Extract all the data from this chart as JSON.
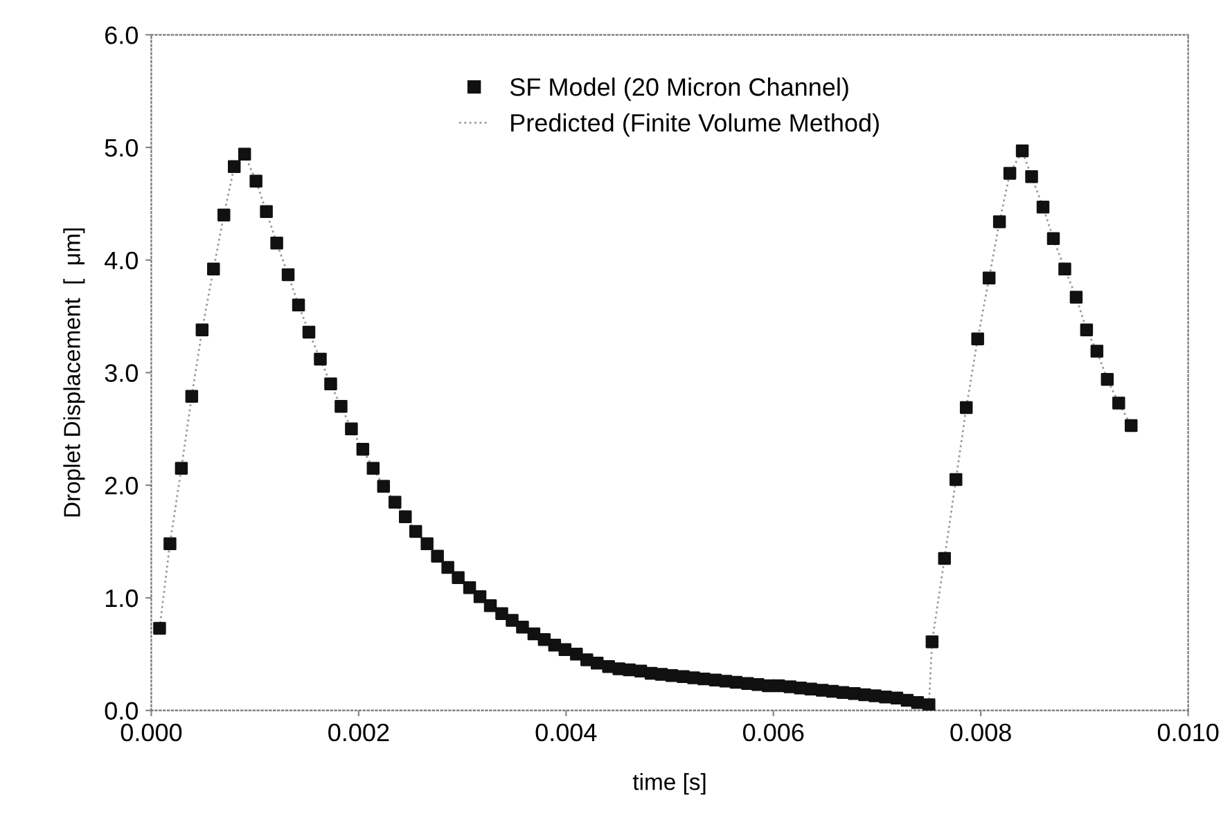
{
  "chart_data": {
    "type": "scatter",
    "xlabel": "time [s]",
    "ylabel": "Droplet Displacement  [  μm]",
    "xlim": [
      0.0,
      0.01
    ],
    "ylim": [
      0.0,
      6.0
    ],
    "xticks": [
      {
        "value": 0.0,
        "label": "0.000"
      },
      {
        "value": 0.002,
        "label": "0.002"
      },
      {
        "value": 0.004,
        "label": "0.004"
      },
      {
        "value": 0.006,
        "label": "0.006"
      },
      {
        "value": 0.008,
        "label": "0.008"
      },
      {
        "value": 0.01,
        "label": "0.010"
      }
    ],
    "yticks": [
      {
        "value": 0,
        "label": "0.0"
      },
      {
        "value": 1,
        "label": "1.0"
      },
      {
        "value": 2,
        "label": "2.0"
      },
      {
        "value": 3,
        "label": "3.0"
      },
      {
        "value": 4,
        "label": "4.0"
      },
      {
        "value": 5,
        "label": "5.0"
      },
      {
        "value": 6,
        "label": "6.0"
      }
    ],
    "grid": false,
    "legend": "top",
    "x": [
      8e-05,
      0.00018,
      0.00029,
      0.00039,
      0.00049,
      0.0006,
      0.0007,
      0.0008,
      0.0009,
      0.00101,
      0.00111,
      0.00121,
      0.00132,
      0.00142,
      0.00152,
      0.00163,
      0.00173,
      0.00183,
      0.00193,
      0.00204,
      0.00214,
      0.00224,
      0.00235,
      0.00245,
      0.00255,
      0.00266,
      0.00276,
      0.00286,
      0.00296,
      0.00307,
      0.00317,
      0.00327,
      0.00338,
      0.00348,
      0.00358,
      0.00369,
      0.00379,
      0.00389,
      0.00399,
      0.0041,
      0.0042,
      0.0043,
      0.00441,
      0.00451,
      0.00461,
      0.00472,
      0.00482,
      0.00492,
      0.00502,
      0.00513,
      0.00523,
      0.00533,
      0.00544,
      0.00554,
      0.00564,
      0.00575,
      0.00585,
      0.00595,
      0.00605,
      0.00616,
      0.00626,
      0.00636,
      0.00647,
      0.00657,
      0.00667,
      0.00678,
      0.00688,
      0.00698,
      0.00708,
      0.00719,
      0.00729,
      0.00739,
      0.0075,
      0.00753,
      0.00765,
      0.00776,
      0.00786,
      0.00797,
      0.00808,
      0.00818,
      0.00828,
      0.0084,
      0.00849,
      0.0086,
      0.0087,
      0.00881,
      0.00892,
      0.00902,
      0.00912,
      0.00922,
      0.00933,
      0.00945
    ],
    "series": [
      {
        "name": "SF Model (20 Micron Channel)",
        "marker": "square",
        "color": "#111111",
        "values": [
          0.73,
          1.48,
          2.15,
          2.79,
          3.38,
          3.92,
          4.4,
          4.83,
          4.94,
          4.7,
          4.43,
          4.15,
          3.87,
          3.6,
          3.36,
          3.12,
          2.9,
          2.7,
          2.5,
          2.32,
          2.15,
          1.99,
          1.85,
          1.72,
          1.59,
          1.48,
          1.37,
          1.27,
          1.18,
          1.09,
          1.01,
          0.93,
          0.86,
          0.8,
          0.74,
          0.68,
          0.63,
          0.58,
          0.54,
          0.5,
          0.45,
          0.42,
          0.39,
          0.37,
          0.36,
          0.35,
          0.33,
          0.32,
          0.31,
          0.3,
          0.29,
          0.28,
          0.27,
          0.26,
          0.25,
          0.24,
          0.23,
          0.22,
          0.22,
          0.21,
          0.2,
          0.19,
          0.18,
          0.17,
          0.16,
          0.15,
          0.14,
          0.13,
          0.12,
          0.11,
          0.09,
          0.07,
          0.05,
          0.61,
          1.35,
          2.05,
          2.69,
          3.3,
          3.84,
          4.34,
          4.77,
          4.97,
          4.74,
          4.47,
          4.19,
          3.92,
          3.67,
          3.38,
          3.19,
          2.94,
          2.73,
          2.53
        ]
      },
      {
        "name": "Predicted (Finite Volume Method)",
        "type": "line",
        "marker": "none",
        "line_style": "dotted",
        "color": "#9a9a9a",
        "values": [
          0.73,
          1.48,
          2.15,
          2.79,
          3.38,
          3.92,
          4.4,
          4.83,
          4.94,
          4.7,
          4.43,
          4.15,
          3.87,
          3.6,
          3.36,
          3.12,
          2.9,
          2.7,
          2.5,
          2.32,
          2.15,
          1.99,
          1.85,
          1.72,
          1.59,
          1.48,
          1.37,
          1.27,
          1.18,
          1.09,
          1.01,
          0.93,
          0.86,
          0.8,
          0.74,
          0.68,
          0.63,
          0.58,
          0.54,
          0.5,
          0.45,
          0.42,
          0.39,
          0.37,
          0.36,
          0.35,
          0.33,
          0.32,
          0.31,
          0.3,
          0.29,
          0.28,
          0.27,
          0.26,
          0.25,
          0.24,
          0.23,
          0.22,
          0.22,
          0.21,
          0.2,
          0.19,
          0.18,
          0.17,
          0.16,
          0.15,
          0.14,
          0.13,
          0.12,
          0.11,
          0.09,
          0.07,
          0.05,
          0.61,
          1.35,
          2.05,
          2.69,
          3.3,
          3.84,
          4.34,
          4.77,
          4.97,
          4.74,
          4.47,
          4.19,
          3.92,
          3.67,
          3.38,
          3.19,
          2.94,
          2.73,
          2.53
        ]
      }
    ]
  }
}
